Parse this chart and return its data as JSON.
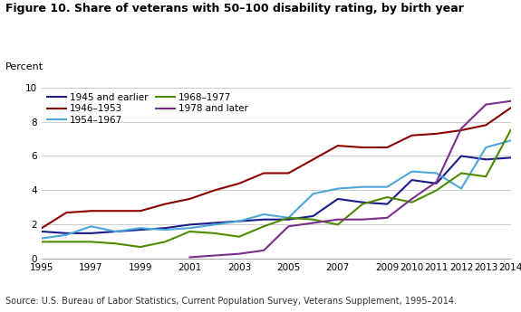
{
  "title": "Figure 10. Share of veterans with 50–100 disability rating, by birth year",
  "percent_label": "Percent",
  "source": "Source: U.S. Bureau of Labor Statistics, Current Population Survey, Veterans Supplement, 1995–2014.",
  "ylim": [
    0,
    10
  ],
  "yticks": [
    0,
    2,
    4,
    6,
    8,
    10
  ],
  "xlim": [
    1995,
    2014
  ],
  "xticks": [
    1995,
    1997,
    1999,
    2001,
    2003,
    2005,
    2007,
    2009,
    2010,
    2011,
    2012,
    2013,
    2014
  ],
  "series": {
    "1945 and earlier": {
      "color": "#1a1a8c",
      "years": [
        1995,
        1996,
        1997,
        1998,
        1999,
        2000,
        2001,
        2002,
        2003,
        2004,
        2005,
        2006,
        2007,
        2008,
        2009,
        2010,
        2011,
        2012,
        2013,
        2014
      ],
      "values": [
        1.6,
        1.5,
        1.5,
        1.6,
        1.7,
        1.8,
        2.0,
        2.1,
        2.2,
        2.3,
        2.3,
        2.5,
        3.5,
        3.3,
        3.2,
        4.6,
        4.4,
        6.0,
        5.8,
        5.9
      ]
    },
    "1946–1953": {
      "color": "#8b0000",
      "years": [
        1995,
        1996,
        1997,
        1998,
        1999,
        2000,
        2001,
        2002,
        2003,
        2004,
        2005,
        2006,
        2007,
        2008,
        2009,
        2010,
        2011,
        2012,
        2013,
        2014
      ],
      "values": [
        1.8,
        2.7,
        2.8,
        2.8,
        2.8,
        3.2,
        3.5,
        4.0,
        4.4,
        5.0,
        5.0,
        5.8,
        6.6,
        6.5,
        6.5,
        7.2,
        7.3,
        7.5,
        7.8,
        8.8
      ]
    },
    "1954–1967": {
      "color": "#4da6d9",
      "years": [
        1995,
        1996,
        1997,
        1998,
        1999,
        2000,
        2001,
        2002,
        2003,
        2004,
        2005,
        2006,
        2007,
        2008,
        2009,
        2010,
        2011,
        2012,
        2013,
        2014
      ],
      "values": [
        1.2,
        1.4,
        1.9,
        1.6,
        1.8,
        1.7,
        1.8,
        2.0,
        2.2,
        2.6,
        2.4,
        3.8,
        4.1,
        4.2,
        4.2,
        5.1,
        5.0,
        4.1,
        6.5,
        6.9
      ]
    },
    "1968–1977": {
      "color": "#4d8b00",
      "years": [
        1995,
        1996,
        1997,
        1998,
        1999,
        2000,
        2001,
        2002,
        2003,
        2004,
        2005,
        2006,
        2007,
        2008,
        2009,
        2010,
        2011,
        2012,
        2013,
        2014
      ],
      "values": [
        1.0,
        1.0,
        1.0,
        0.9,
        0.7,
        1.0,
        1.6,
        1.5,
        1.3,
        1.9,
        2.4,
        2.3,
        2.0,
        3.2,
        3.6,
        3.3,
        4.0,
        5.0,
        4.8,
        7.5
      ]
    },
    "1978 and later": {
      "color": "#7b2d8b",
      "years": [
        2001,
        2002,
        2003,
        2004,
        2005,
        2006,
        2007,
        2008,
        2009,
        2010,
        2011,
        2012,
        2013,
        2014
      ],
      "values": [
        0.1,
        0.2,
        0.3,
        0.5,
        1.9,
        2.1,
        2.3,
        2.3,
        2.4,
        3.5,
        4.5,
        7.6,
        9.0,
        9.2
      ]
    }
  },
  "legend_order": [
    "1945 and earlier",
    "1946–1953",
    "1954–1967",
    "1968–1977",
    "1978 and later"
  ]
}
